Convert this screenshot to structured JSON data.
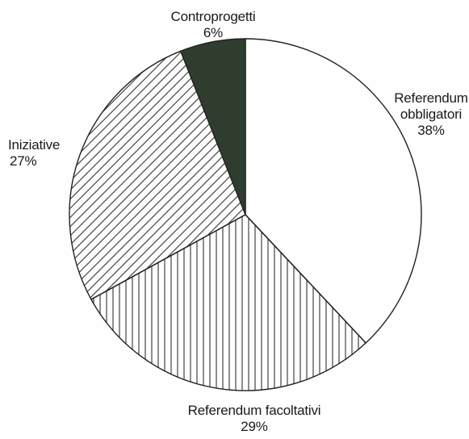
{
  "chart_data": {
    "type": "pie",
    "title": "",
    "slices": [
      {
        "label": "Referendum obbligatori",
        "label_lines": [
          "Referendum",
          "obbligatori"
        ],
        "value": 38,
        "value_text": "38%",
        "fill": "white"
      },
      {
        "label": "Referendum facoltativi",
        "label_lines": [
          "Referendum facoltativi"
        ],
        "value": 29,
        "value_text": "29%",
        "fill": "vertical-hatch"
      },
      {
        "label": "Iniziative",
        "label_lines": [
          "Iniziative"
        ],
        "value": 27,
        "value_text": "27%",
        "fill": "diagonal-hatch"
      },
      {
        "label": "Controprogetti",
        "label_lines": [
          "Controprogetti"
        ],
        "value": 6,
        "value_text": "6%",
        "fill": "solid-dark"
      }
    ],
    "start_angle_deg": 0,
    "direction": "clockwise",
    "colors": {
      "outline": "#222222",
      "hatch": "#333333",
      "solid_dark": "#2f3d2f",
      "white": "#ffffff"
    }
  }
}
